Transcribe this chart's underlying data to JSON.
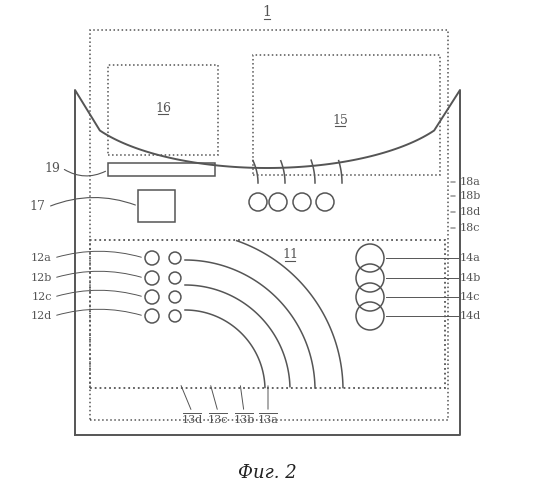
{
  "bg_color": "#ffffff",
  "line_color": "#555555",
  "title": "Фиг. 2",
  "label_1": "1",
  "label_11": "11",
  "label_15": "15",
  "label_16": "16",
  "label_17": "17",
  "label_19": "19",
  "labels_12": [
    "12a",
    "12b",
    "12c",
    "12d"
  ],
  "labels_13": [
    "13a",
    "13b",
    "13c",
    "13d"
  ],
  "labels_14": [
    "14a",
    "14b",
    "14c",
    "14d"
  ],
  "labels_18": [
    "18a",
    "18b",
    "18c",
    "18d"
  ]
}
